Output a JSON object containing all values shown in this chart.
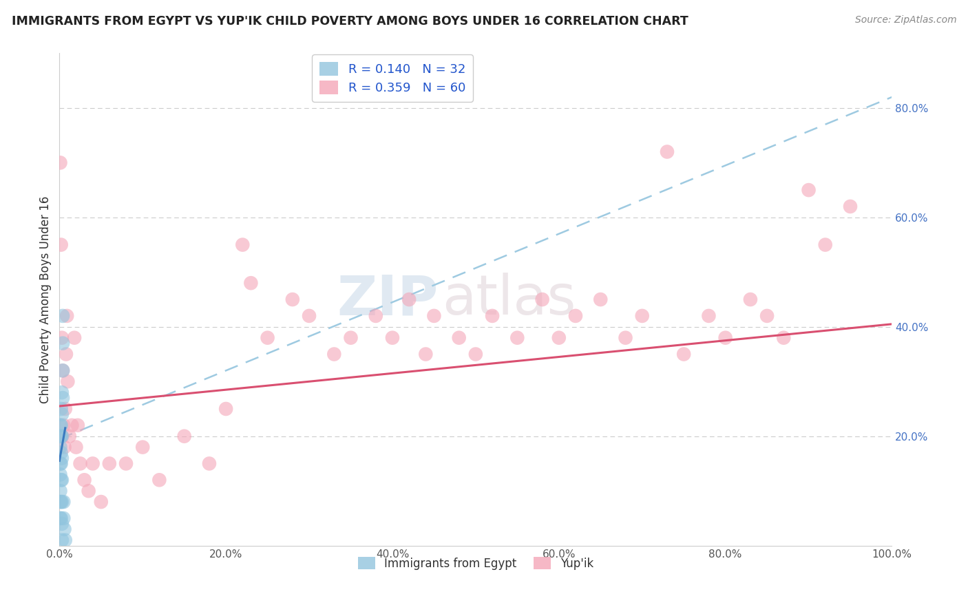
{
  "title": "IMMIGRANTS FROM EGYPT VS YUP'IK CHILD POVERTY AMONG BOYS UNDER 16 CORRELATION CHART",
  "source": "Source: ZipAtlas.com",
  "ylabel": "Child Poverty Among Boys Under 16",
  "xlim": [
    0.0,
    1.0
  ],
  "ylim": [
    0.0,
    0.9
  ],
  "xtick_labels": [
    "0.0%",
    "20.0%",
    "40.0%",
    "60.0%",
    "80.0%",
    "100.0%"
  ],
  "xtick_vals": [
    0.0,
    0.2,
    0.4,
    0.6,
    0.8,
    1.0
  ],
  "ytick_labels": [
    "20.0%",
    "40.0%",
    "60.0%",
    "80.0%"
  ],
  "ytick_vals": [
    0.2,
    0.4,
    0.6,
    0.8
  ],
  "legend_labels": [
    "Immigrants from Egypt",
    "Yup'ik"
  ],
  "blue_R": 0.14,
  "blue_N": 32,
  "pink_R": 0.359,
  "pink_N": 60,
  "blue_color": "#92c5de",
  "pink_color": "#f4a6b8",
  "blue_line_color": "#3a7abf",
  "pink_line_color": "#d94f70",
  "dashed_line_color": "#9ecae1",
  "watermark_zip": "ZIP",
  "watermark_atlas": "atlas",
  "blue_points": [
    [
      0.001,
      0.22
    ],
    [
      0.001,
      0.2
    ],
    [
      0.001,
      0.18
    ],
    [
      0.001,
      0.15
    ],
    [
      0.001,
      0.13
    ],
    [
      0.001,
      0.1
    ],
    [
      0.001,
      0.08
    ],
    [
      0.001,
      0.05
    ],
    [
      0.002,
      0.25
    ],
    [
      0.002,
      0.22
    ],
    [
      0.002,
      0.2
    ],
    [
      0.002,
      0.17
    ],
    [
      0.002,
      0.15
    ],
    [
      0.002,
      0.12
    ],
    [
      0.002,
      0.08
    ],
    [
      0.002,
      0.05
    ],
    [
      0.003,
      0.28
    ],
    [
      0.003,
      0.24
    ],
    [
      0.003,
      0.2
    ],
    [
      0.003,
      0.16
    ],
    [
      0.003,
      0.12
    ],
    [
      0.003,
      0.08
    ],
    [
      0.003,
      0.04
    ],
    [
      0.003,
      0.01
    ],
    [
      0.004,
      0.42
    ],
    [
      0.004,
      0.37
    ],
    [
      0.004,
      0.32
    ],
    [
      0.004,
      0.27
    ],
    [
      0.005,
      0.08
    ],
    [
      0.005,
      0.05
    ],
    [
      0.006,
      0.03
    ],
    [
      0.007,
      0.01
    ]
  ],
  "pink_points": [
    [
      0.001,
      0.7
    ],
    [
      0.002,
      0.55
    ],
    [
      0.003,
      0.38
    ],
    [
      0.003,
      0.2
    ],
    [
      0.004,
      0.32
    ],
    [
      0.005,
      0.22
    ],
    [
      0.006,
      0.18
    ],
    [
      0.007,
      0.25
    ],
    [
      0.008,
      0.35
    ],
    [
      0.009,
      0.42
    ],
    [
      0.01,
      0.3
    ],
    [
      0.012,
      0.2
    ],
    [
      0.015,
      0.22
    ],
    [
      0.018,
      0.38
    ],
    [
      0.02,
      0.18
    ],
    [
      0.022,
      0.22
    ],
    [
      0.025,
      0.15
    ],
    [
      0.03,
      0.12
    ],
    [
      0.035,
      0.1
    ],
    [
      0.04,
      0.15
    ],
    [
      0.05,
      0.08
    ],
    [
      0.06,
      0.15
    ],
    [
      0.08,
      0.15
    ],
    [
      0.1,
      0.18
    ],
    [
      0.12,
      0.12
    ],
    [
      0.15,
      0.2
    ],
    [
      0.18,
      0.15
    ],
    [
      0.2,
      0.25
    ],
    [
      0.22,
      0.55
    ],
    [
      0.23,
      0.48
    ],
    [
      0.25,
      0.38
    ],
    [
      0.28,
      0.45
    ],
    [
      0.3,
      0.42
    ],
    [
      0.33,
      0.35
    ],
    [
      0.35,
      0.38
    ],
    [
      0.38,
      0.42
    ],
    [
      0.4,
      0.38
    ],
    [
      0.42,
      0.45
    ],
    [
      0.44,
      0.35
    ],
    [
      0.45,
      0.42
    ],
    [
      0.48,
      0.38
    ],
    [
      0.5,
      0.35
    ],
    [
      0.52,
      0.42
    ],
    [
      0.55,
      0.38
    ],
    [
      0.58,
      0.45
    ],
    [
      0.6,
      0.38
    ],
    [
      0.62,
      0.42
    ],
    [
      0.65,
      0.45
    ],
    [
      0.68,
      0.38
    ],
    [
      0.7,
      0.42
    ],
    [
      0.73,
      0.72
    ],
    [
      0.75,
      0.35
    ],
    [
      0.78,
      0.42
    ],
    [
      0.8,
      0.38
    ],
    [
      0.83,
      0.45
    ],
    [
      0.85,
      0.42
    ],
    [
      0.87,
      0.38
    ],
    [
      0.9,
      0.65
    ],
    [
      0.92,
      0.55
    ],
    [
      0.95,
      0.62
    ]
  ],
  "pink_line_x0": 0.0,
  "pink_line_y0": 0.255,
  "pink_line_x1": 1.0,
  "pink_line_y1": 0.405,
  "blue_line_x0": 0.0,
  "blue_line_y0": 0.155,
  "blue_line_x1": 0.007,
  "blue_line_y1": 0.215,
  "dash_line_x0": 0.0,
  "dash_line_y0": 0.195,
  "dash_line_x1": 1.0,
  "dash_line_y1": 0.82
}
